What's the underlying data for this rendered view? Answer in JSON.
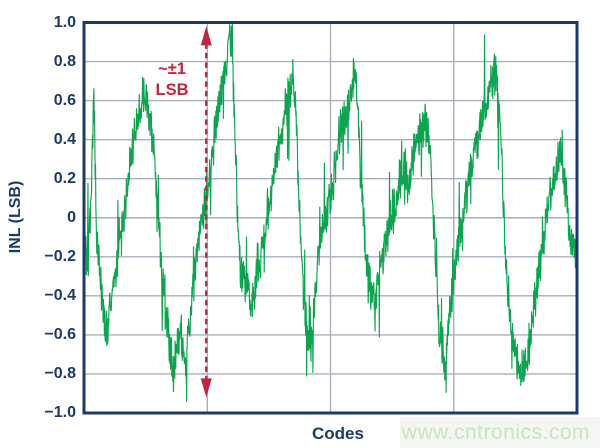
{
  "figure": {
    "ylabel": "INL (LSB)",
    "xlabel": "Codes",
    "annotation_line1": "~±1",
    "annotation_line2": "LSB",
    "watermark": "www.cntronics.com"
  },
  "colors": {
    "axis_navy": "#1b3a68",
    "gridline_gray": "#a9afbd",
    "trace_green": "#0ea34f",
    "annotation_red": "#c5243f",
    "watermark_green": "#c9e4bf",
    "background": "#ffffff"
  },
  "chart_data": {
    "type": "line",
    "title": "",
    "xlabel": "Codes",
    "ylabel": "INL (LSB)",
    "ylim": [
      -1.0,
      1.0
    ],
    "xlim_pct": [
      0,
      100
    ],
    "grid": true,
    "legend": false,
    "y_tick_labels": [
      "1.0",
      "0.8",
      "0.6",
      "0.4",
      "0.2",
      "0",
      "−0.2",
      "−0.4",
      "−0.6",
      "−0.8",
      "−1.0"
    ],
    "y_tick_values": [
      1.0,
      0.8,
      0.6,
      0.4,
      0.2,
      0,
      -0.2,
      -0.4,
      -0.6,
      -0.8,
      -1.0
    ],
    "x_tick_labels_shown": false,
    "x_gridlines_pct": [
      25,
      50,
      75
    ],
    "annotation": {
      "text": "~±1 LSB",
      "arrow_x_pct": 24.8,
      "arrow_from_lsb": -0.92,
      "arrow_to_lsb": 0.98,
      "style": "dashed-double-arrow"
    },
    "series": [
      {
        "name": "INL",
        "color": "#0ea34f",
        "noise": {
          "base": 0.055,
          "var": 0.075,
          "spike_prob": 0.05,
          "spike_max": 0.22,
          "samples": 1500,
          "seed": 20117
        },
        "envelope_x_pct_inl": [
          [
            0,
            -0.05
          ],
          [
            0.6,
            -0.22
          ],
          [
            1.4,
            0.08
          ],
          [
            2.0,
            0.62
          ],
          [
            2.6,
            -0.1
          ],
          [
            3.4,
            -0.33
          ],
          [
            4.5,
            -0.6
          ],
          [
            5.1,
            -0.5
          ],
          [
            5.9,
            -0.36
          ],
          [
            7.1,
            -0.16
          ],
          [
            8.3,
            0.05
          ],
          [
            9.5,
            0.32
          ],
          [
            10.7,
            0.48
          ],
          [
            11.5,
            0.58
          ],
          [
            12.3,
            0.66
          ],
          [
            13.2,
            0.55
          ],
          [
            14.0,
            0.42
          ],
          [
            14.8,
            0.1
          ],
          [
            15.6,
            -0.2
          ],
          [
            16.4,
            -0.45
          ],
          [
            17.2,
            -0.6
          ],
          [
            18.0,
            -0.8
          ],
          [
            18.8,
            -0.68
          ],
          [
            19.6,
            -0.6
          ],
          [
            20.4,
            -0.75
          ],
          [
            21.3,
            -0.55
          ],
          [
            22.1,
            -0.35
          ],
          [
            22.9,
            -0.2
          ],
          [
            23.7,
            -0.05
          ],
          [
            24.7,
            0.1
          ],
          [
            25.7,
            0.26
          ],
          [
            26.7,
            0.45
          ],
          [
            27.7,
            0.62
          ],
          [
            28.5,
            0.76
          ],
          [
            29.4,
            0.9
          ],
          [
            30.0,
            0.84
          ],
          [
            30.6,
            0.45
          ],
          [
            31.2,
            -0.05
          ],
          [
            31.8,
            -0.28
          ],
          [
            33.0,
            -0.32
          ],
          [
            33.8,
            -0.45
          ],
          [
            34.6,
            -0.4
          ],
          [
            35.4,
            -0.28
          ],
          [
            36.2,
            -0.14
          ],
          [
            37.0,
            0.0
          ],
          [
            37.9,
            0.12
          ],
          [
            38.7,
            0.25
          ],
          [
            39.5,
            0.38
          ],
          [
            40.5,
            0.5
          ],
          [
            41.5,
            0.62
          ],
          [
            42.3,
            0.72
          ],
          [
            42.9,
            0.55
          ],
          [
            43.5,
            0.2
          ],
          [
            44.1,
            -0.2
          ],
          [
            44.7,
            -0.45
          ],
          [
            45.3,
            -0.6
          ],
          [
            46.0,
            -0.66
          ],
          [
            46.6,
            -0.5
          ],
          [
            47.2,
            -0.3
          ],
          [
            48.0,
            -0.12
          ],
          [
            49.0,
            0.0
          ],
          [
            50.0,
            0.1
          ],
          [
            51.0,
            0.25
          ],
          [
            52.0,
            0.42
          ],
          [
            53.0,
            0.5
          ],
          [
            54.0,
            0.62
          ],
          [
            54.9,
            0.74
          ],
          [
            55.5,
            0.6
          ],
          [
            56.1,
            0.3
          ],
          [
            56.7,
            0.0
          ],
          [
            57.3,
            -0.2
          ],
          [
            58.1,
            -0.35
          ],
          [
            58.9,
            -0.42
          ],
          [
            59.7,
            -0.3
          ],
          [
            60.5,
            -0.22
          ],
          [
            61.3,
            -0.12
          ],
          [
            62.1,
            -0.02
          ],
          [
            63.2,
            0.08
          ],
          [
            64.2,
            0.18
          ],
          [
            65.2,
            0.25
          ],
          [
            65.8,
            0.1
          ],
          [
            66.6,
            0.3
          ],
          [
            67.4,
            0.38
          ],
          [
            68.2,
            0.44
          ],
          [
            69.2,
            0.5
          ],
          [
            70.0,
            0.42
          ],
          [
            70.6,
            0.15
          ],
          [
            71.3,
            -0.2
          ],
          [
            71.9,
            -0.5
          ],
          [
            72.5,
            -0.68
          ],
          [
            73.1,
            -0.78
          ],
          [
            73.7,
            -0.62
          ],
          [
            74.3,
            -0.45
          ],
          [
            75.1,
            -0.3
          ],
          [
            75.9,
            -0.15
          ],
          [
            76.7,
            0.0
          ],
          [
            77.5,
            0.12
          ],
          [
            78.3,
            0.22
          ],
          [
            79.1,
            0.32
          ],
          [
            80.0,
            0.42
          ],
          [
            80.8,
            0.52
          ],
          [
            81.6,
            0.6
          ],
          [
            82.4,
            0.68
          ],
          [
            83.2,
            0.76
          ],
          [
            83.8,
            0.7
          ],
          [
            84.4,
            0.45
          ],
          [
            85.0,
            0.1
          ],
          [
            85.6,
            -0.25
          ],
          [
            86.2,
            -0.45
          ],
          [
            86.8,
            -0.58
          ],
          [
            87.4,
            -0.68
          ],
          [
            88.1,
            -0.75
          ],
          [
            88.7,
            -0.82
          ],
          [
            89.3,
            -0.78
          ],
          [
            89.9,
            -0.72
          ],
          [
            90.5,
            -0.6
          ],
          [
            91.3,
            -0.45
          ],
          [
            92.1,
            -0.3
          ],
          [
            92.9,
            -0.15
          ],
          [
            93.7,
            0.0
          ],
          [
            94.5,
            0.1
          ],
          [
            95.3,
            0.2
          ],
          [
            96.2,
            0.28
          ],
          [
            96.8,
            0.3
          ],
          [
            97.4,
            0.2
          ],
          [
            98.0,
            0.05
          ],
          [
            98.6,
            -0.08
          ],
          [
            99.2,
            -0.14
          ],
          [
            100,
            -0.18
          ]
        ]
      }
    ]
  }
}
